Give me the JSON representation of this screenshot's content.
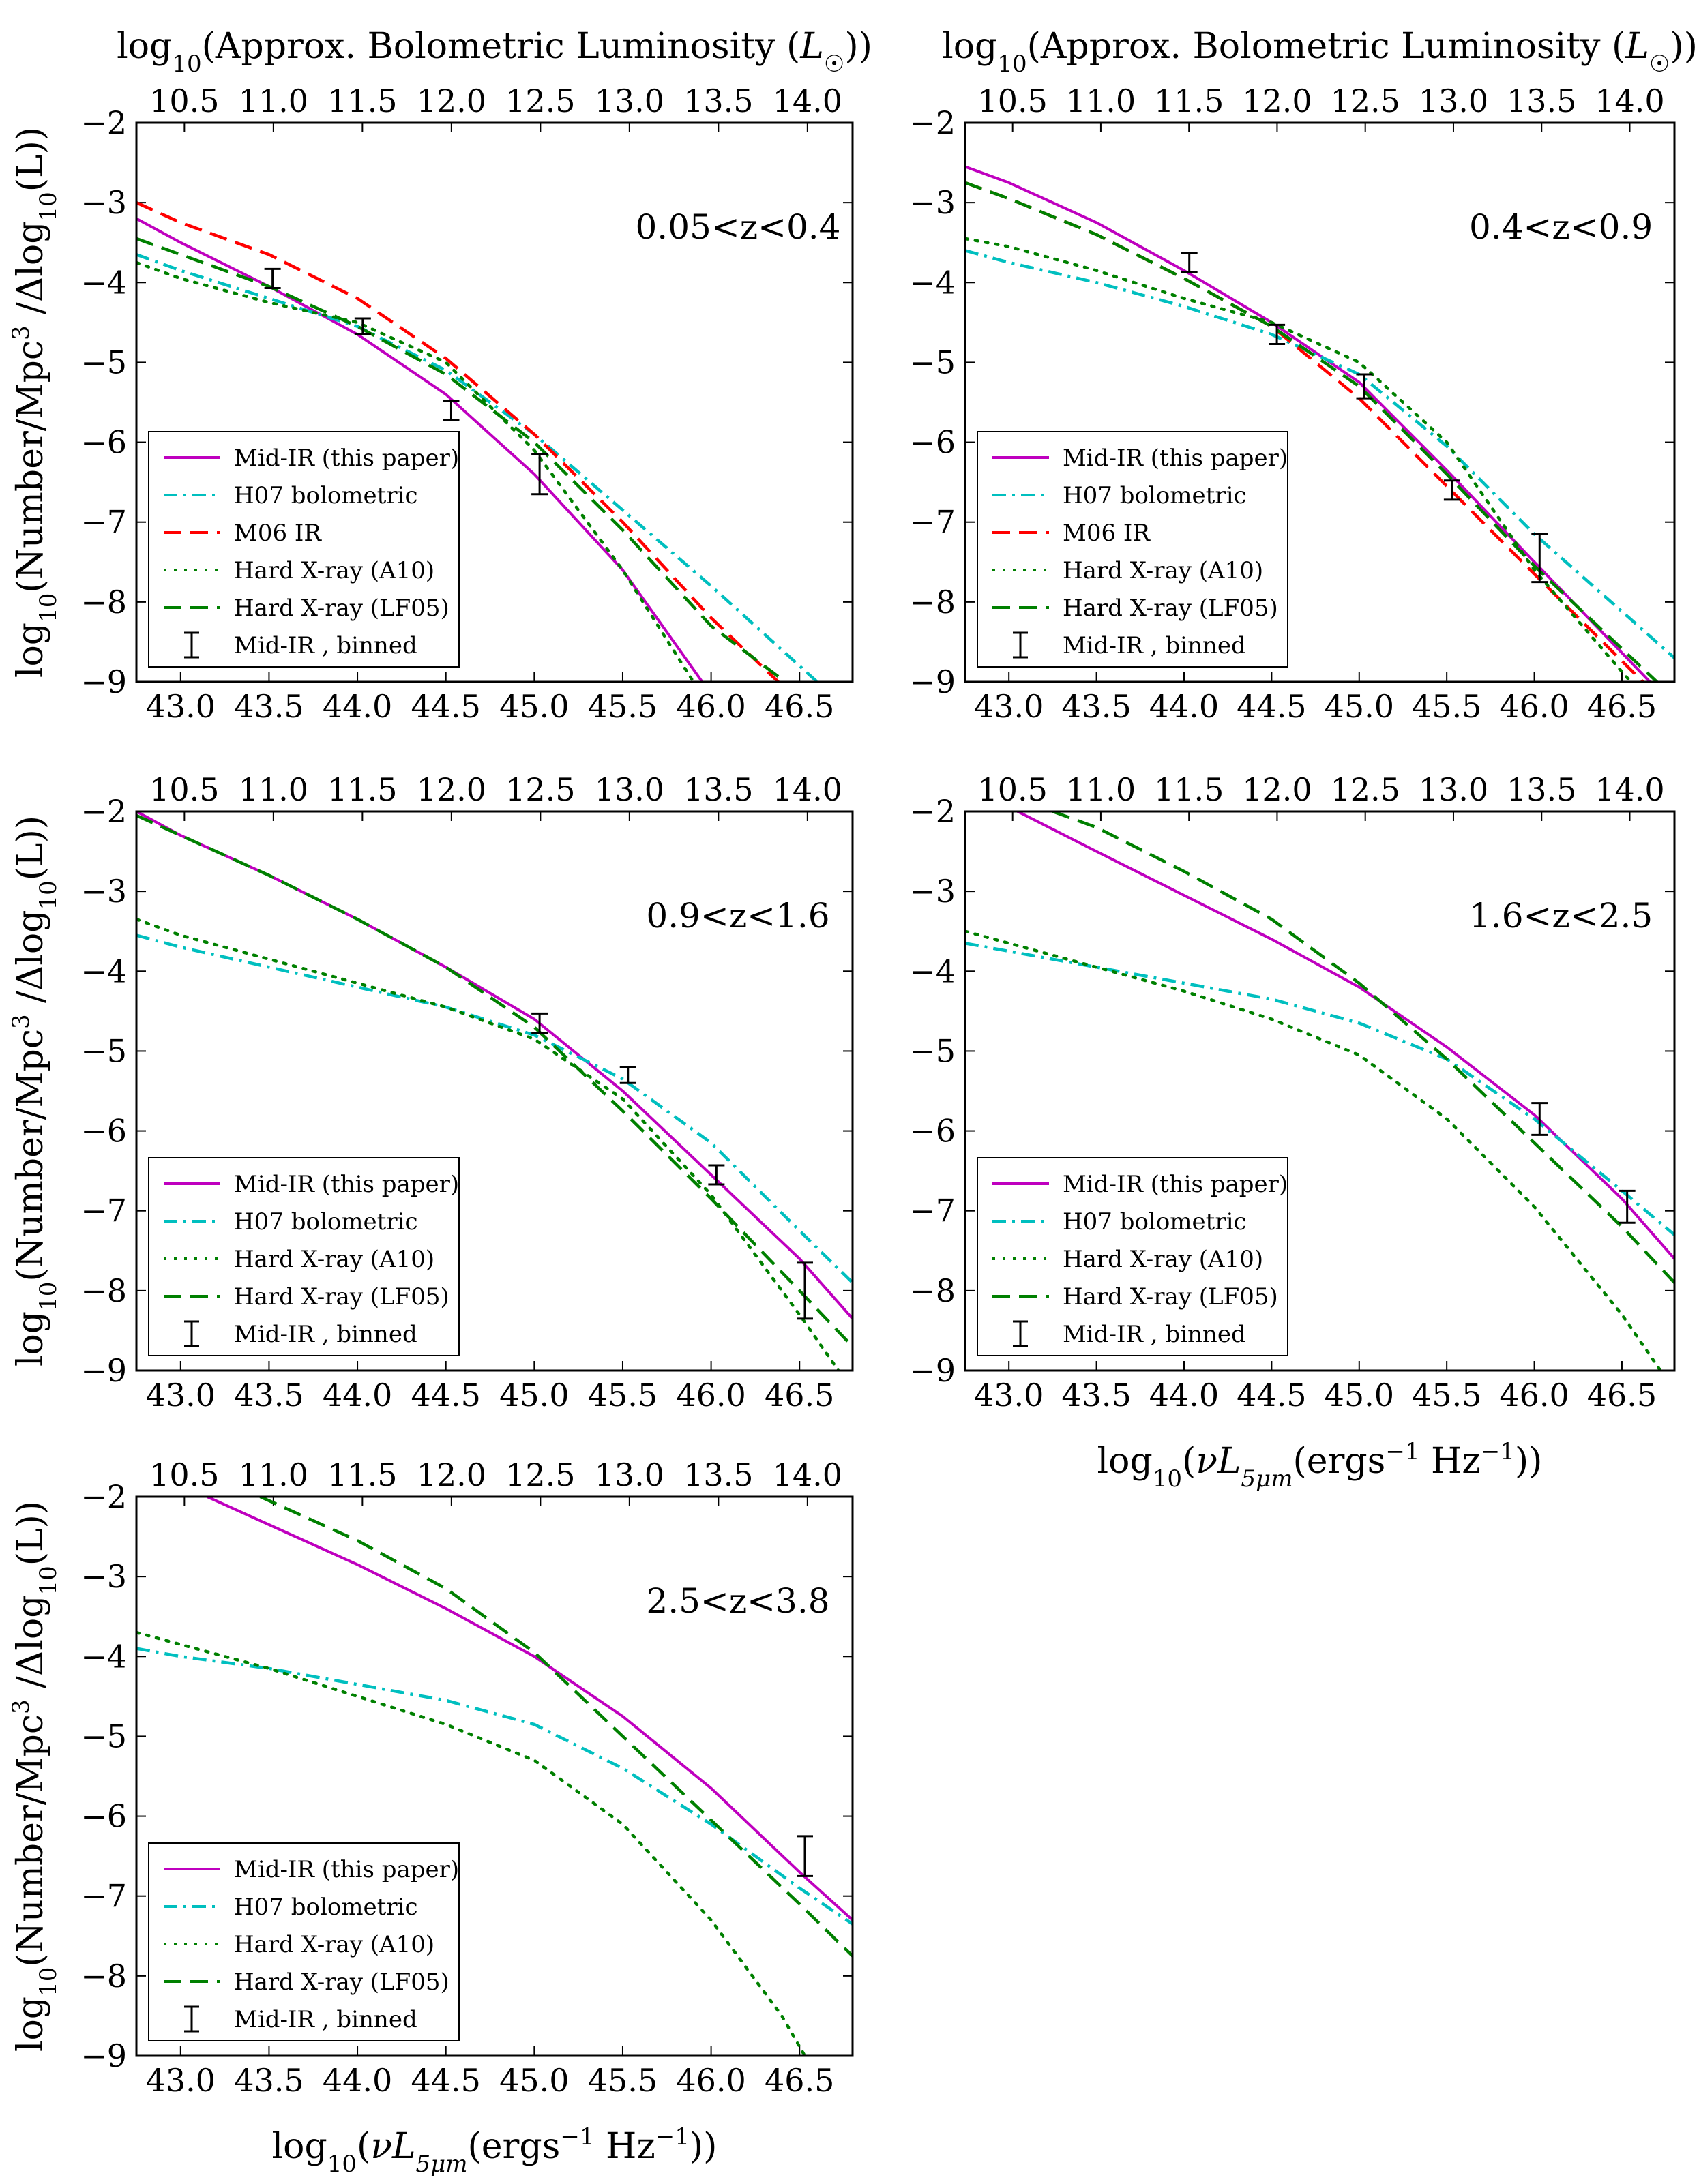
{
  "figure": {
    "top_axis_label": "log10(Approx. Bolometric Luminosity (L⊙))",
    "bottom_axis_label": "log10(νL5μm(ergs⁻¹ Hz⁻¹))",
    "y_axis_label": "log10(Number/Mpc³ /Δlog10(L))"
  },
  "chart_data": [
    {
      "type": "line",
      "title": "0.05<z<0.4",
      "xlabel": "log10(νL5μm(ergs⁻¹ Hz⁻¹))",
      "ylabel": "log10(Number/Mpc³ /Δlog10(L))",
      "top_xlabel": "log10(Approx. Bolometric Luminosity (L⊙))",
      "xlim": [
        42.75,
        46.8
      ],
      "ylim": [
        -9,
        -2
      ],
      "xticks": [
        "43.0",
        "43.5",
        "44.0",
        "44.5",
        "45.0",
        "45.5",
        "46.0",
        "46.5"
      ],
      "yticks": [
        "−2",
        "−3",
        "−4",
        "−5",
        "−6",
        "−7",
        "−8",
        "−9"
      ],
      "top_ticks": [
        "10.5",
        "11.0",
        "11.5",
        "12.0",
        "12.5",
        "13.0",
        "13.5",
        "14.0"
      ],
      "legend_position": "lower-left",
      "series": [
        {
          "name": "Mid-IR (this paper)",
          "color": "#bf00bf",
          "style": "solid",
          "x": [
            42.75,
            43.0,
            43.5,
            44.0,
            44.5,
            45.0,
            45.5,
            45.95
          ],
          "y": [
            -3.2,
            -3.5,
            -4.05,
            -4.65,
            -5.4,
            -6.4,
            -7.6,
            -9.0
          ]
        },
        {
          "name": "H07 bolometric",
          "color": "#00bfbf",
          "style": "dashdot",
          "x": [
            42.75,
            43.0,
            43.5,
            44.0,
            44.5,
            45.0,
            45.5,
            46.0,
            46.6
          ],
          "y": [
            -3.65,
            -3.85,
            -4.2,
            -4.55,
            -5.1,
            -5.9,
            -6.85,
            -7.8,
            -9.0
          ]
        },
        {
          "name": "M06 IR",
          "color": "#ff0000",
          "style": "dashed",
          "x": [
            42.75,
            43.0,
            43.5,
            44.0,
            44.5,
            45.0,
            45.5,
            46.0,
            46.38
          ],
          "y": [
            -3.0,
            -3.25,
            -3.65,
            -4.2,
            -4.95,
            -5.9,
            -7.0,
            -8.2,
            -9.0
          ]
        },
        {
          "name": "Hard X-ray (A10)",
          "color": "#008000",
          "style": "dotted",
          "x": [
            42.75,
            43.0,
            43.5,
            44.0,
            44.5,
            45.0,
            45.5,
            45.9
          ],
          "y": [
            -3.75,
            -3.95,
            -4.25,
            -4.5,
            -5.0,
            -6.1,
            -7.6,
            -9.0
          ]
        },
        {
          "name": "Hard X-ray (LF05)",
          "color": "#008000",
          "style": "dashed",
          "x": [
            42.75,
            43.0,
            43.5,
            44.0,
            44.5,
            45.0,
            45.5,
            46.0,
            46.42
          ],
          "y": [
            -3.45,
            -3.65,
            -4.05,
            -4.55,
            -5.15,
            -6.0,
            -7.1,
            -8.3,
            -9.0
          ]
        }
      ],
      "binned": {
        "name": "Mid-IR , binned",
        "x": [
          43.52,
          44.03,
          44.53,
          45.03
        ],
        "y": [
          -3.95,
          -4.55,
          -5.6,
          -6.4
        ],
        "err": [
          0.12,
          0.1,
          0.12,
          0.25
        ]
      }
    },
    {
      "type": "line",
      "title": "0.4<z<0.9",
      "xlabel": "log10(νL5μm(ergs⁻¹ Hz⁻¹))",
      "ylabel": "log10(Number/Mpc³ /Δlog10(L))",
      "top_xlabel": "log10(Approx. Bolometric Luminosity (L⊙))",
      "xlim": [
        42.75,
        46.8
      ],
      "ylim": [
        -9,
        -2
      ],
      "xticks": [
        "43.0",
        "43.5",
        "44.0",
        "44.5",
        "45.0",
        "45.5",
        "46.0",
        "46.5"
      ],
      "yticks": [
        "−2",
        "−3",
        "−4",
        "−5",
        "−6",
        "−7",
        "−8",
        "−9"
      ],
      "top_ticks": [
        "10.5",
        "11.0",
        "11.5",
        "12.0",
        "12.5",
        "13.0",
        "13.5",
        "14.0"
      ],
      "legend_position": "lower-left",
      "series": [
        {
          "name": "Mid-IR (this paper)",
          "color": "#bf00bf",
          "style": "solid",
          "x": [
            42.75,
            43.0,
            43.5,
            44.0,
            44.5,
            45.0,
            45.5,
            46.0,
            46.66
          ],
          "y": [
            -2.55,
            -2.75,
            -3.25,
            -3.85,
            -4.5,
            -5.25,
            -6.35,
            -7.5,
            -9.0
          ]
        },
        {
          "name": "H07 bolometric",
          "color": "#00bfbf",
          "style": "dashdot",
          "x": [
            42.75,
            43.0,
            43.5,
            44.0,
            44.5,
            45.0,
            45.5,
            46.0,
            46.8
          ],
          "y": [
            -3.6,
            -3.75,
            -4.0,
            -4.3,
            -4.65,
            -5.15,
            -6.05,
            -7.15,
            -8.7
          ]
        },
        {
          "name": "M06 IR",
          "color": "#ff0000",
          "style": "dashed",
          "x": [
            42.75,
            43.0,
            43.5,
            44.0,
            44.5,
            45.0,
            45.5,
            46.0,
            46.62
          ],
          "y": [
            -2.75,
            -2.95,
            -3.4,
            -3.95,
            -4.55,
            -5.45,
            -6.55,
            -7.65,
            -9.0
          ]
        },
        {
          "name": "Hard X-ray (A10)",
          "color": "#008000",
          "style": "dotted",
          "x": [
            42.75,
            43.0,
            43.5,
            44.0,
            44.5,
            45.0,
            45.5,
            46.0,
            46.55
          ],
          "y": [
            -3.45,
            -3.55,
            -3.85,
            -4.2,
            -4.5,
            -5.0,
            -6.0,
            -7.6,
            -9.0
          ]
        },
        {
          "name": "Hard X-ray (LF05)",
          "color": "#008000",
          "style": "dashed",
          "x": [
            42.75,
            43.0,
            43.5,
            44.0,
            44.5,
            45.0,
            45.5,
            46.0,
            46.7
          ],
          "y": [
            -2.75,
            -2.95,
            -3.4,
            -3.95,
            -4.55,
            -5.3,
            -6.4,
            -7.55,
            -9.0
          ]
        }
      ],
      "binned": {
        "name": "Mid-IR , binned",
        "x": [
          44.03,
          44.53,
          45.03,
          45.53,
          46.03
        ],
        "y": [
          -3.75,
          -4.65,
          -5.3,
          -6.6,
          -7.45
        ],
        "err": [
          0.12,
          0.12,
          0.15,
          0.12,
          0.3
        ]
      }
    },
    {
      "type": "line",
      "title": "0.9<z<1.6",
      "xlabel": "log10(νL5μm(ergs⁻¹ Hz⁻¹))",
      "ylabel": "log10(Number/Mpc³ /Δlog10(L))",
      "top_xlabel": "log10(Approx. Bolometric Luminosity (L⊙))",
      "xlim": [
        42.75,
        46.8
      ],
      "ylim": [
        -9,
        -2
      ],
      "xticks": [
        "43.0",
        "43.5",
        "44.0",
        "44.5",
        "45.0",
        "45.5",
        "46.0",
        "46.5"
      ],
      "yticks": [
        "−2",
        "−3",
        "−4",
        "−5",
        "−6",
        "−7",
        "−8",
        "−9"
      ],
      "top_ticks": [
        "10.5",
        "11.0",
        "11.5",
        "12.0",
        "12.5",
        "13.0",
        "13.5",
        "14.0"
      ],
      "legend_position": "lower-left",
      "series": [
        {
          "name": "Mid-IR (this paper)",
          "color": "#bf00bf",
          "style": "solid",
          "x": [
            42.75,
            43.0,
            43.5,
            44.0,
            44.5,
            45.0,
            45.5,
            46.0,
            46.5,
            46.8
          ],
          "y": [
            -2.0,
            -2.3,
            -2.8,
            -3.35,
            -3.95,
            -4.6,
            -5.5,
            -6.55,
            -7.6,
            -8.35
          ]
        },
        {
          "name": "H07 bolometric",
          "color": "#00bfbf",
          "style": "dashdot",
          "x": [
            42.75,
            43.0,
            43.5,
            44.0,
            44.5,
            45.0,
            45.5,
            46.0,
            46.5,
            46.8
          ],
          "y": [
            -3.55,
            -3.7,
            -3.95,
            -4.2,
            -4.45,
            -4.8,
            -5.35,
            -6.15,
            -7.25,
            -7.9
          ]
        },
        {
          "name": "Hard X-ray (A10)",
          "color": "#008000",
          "style": "dotted",
          "x": [
            42.75,
            43.0,
            43.5,
            44.0,
            44.5,
            45.0,
            45.5,
            46.0,
            46.5,
            46.72
          ],
          "y": [
            -3.35,
            -3.55,
            -3.85,
            -4.15,
            -4.45,
            -4.85,
            -5.6,
            -6.8,
            -8.3,
            -9.0
          ]
        },
        {
          "name": "Hard X-ray (LF05)",
          "color": "#008000",
          "style": "dashed",
          "x": [
            42.75,
            43.0,
            43.5,
            44.0,
            44.5,
            45.0,
            45.5,
            46.0,
            46.5,
            46.8
          ],
          "y": [
            -2.05,
            -2.3,
            -2.8,
            -3.35,
            -3.95,
            -4.7,
            -5.75,
            -6.85,
            -8.0,
            -8.7
          ]
        }
      ],
      "binned": {
        "name": "Mid-IR , binned",
        "x": [
          45.03,
          45.53,
          46.03,
          46.53
        ],
        "y": [
          -4.65,
          -5.3,
          -6.55,
          -8.0
        ],
        "err": [
          0.12,
          0.1,
          0.12,
          0.35
        ]
      }
    },
    {
      "type": "line",
      "title": "1.6<z<2.5",
      "xlabel": "log10(νL5μm(ergs⁻¹ Hz⁻¹))",
      "ylabel": "log10(Number/Mpc³ /Δlog10(L))",
      "top_xlabel": "log10(Approx. Bolometric Luminosity (L⊙))",
      "xlim": [
        42.75,
        46.8
      ],
      "ylim": [
        -9,
        -2
      ],
      "xticks": [
        "43.0",
        "43.5",
        "44.0",
        "44.5",
        "45.0",
        "45.5",
        "46.0",
        "46.5"
      ],
      "yticks": [
        "−2",
        "−3",
        "−4",
        "−5",
        "−6",
        "−7",
        "−8",
        "−9"
      ],
      "top_ticks": [
        "10.5",
        "11.0",
        "11.5",
        "12.0",
        "12.5",
        "13.0",
        "13.5",
        "14.0"
      ],
      "legend_position": "lower-left",
      "series": [
        {
          "name": "Mid-IR (this paper)",
          "color": "#bf00bf",
          "style": "solid",
          "x": [
            43.05,
            43.5,
            44.0,
            44.5,
            45.0,
            45.5,
            46.0,
            46.5,
            46.8
          ],
          "y": [
            -2.0,
            -2.5,
            -3.05,
            -3.6,
            -4.2,
            -4.95,
            -5.8,
            -6.85,
            -7.6
          ]
        },
        {
          "name": "H07 bolometric",
          "color": "#00bfbf",
          "style": "dashdot",
          "x": [
            42.75,
            43.0,
            43.5,
            44.0,
            44.5,
            45.0,
            45.5,
            46.0,
            46.5,
            46.8
          ],
          "y": [
            -3.65,
            -3.75,
            -3.95,
            -4.15,
            -4.35,
            -4.65,
            -5.1,
            -5.85,
            -6.75,
            -7.3
          ]
        },
        {
          "name": "Hard X-ray (A10)",
          "color": "#008000",
          "style": "dotted",
          "x": [
            42.75,
            43.0,
            43.5,
            44.0,
            44.5,
            45.0,
            45.5,
            46.0,
            46.5,
            46.72
          ],
          "y": [
            -3.5,
            -3.65,
            -3.95,
            -4.25,
            -4.6,
            -5.05,
            -5.85,
            -6.95,
            -8.3,
            -9.0
          ]
        },
        {
          "name": "Hard X-ray (LF05)",
          "color": "#008000",
          "style": "dashed",
          "x": [
            43.25,
            43.5,
            44.0,
            44.5,
            45.0,
            45.5,
            46.0,
            46.5,
            46.8
          ],
          "y": [
            -2.0,
            -2.2,
            -2.75,
            -3.35,
            -4.15,
            -5.1,
            -6.15,
            -7.2,
            -7.9
          ]
        }
      ],
      "binned": {
        "name": "Mid-IR , binned",
        "x": [
          46.03,
          46.53
        ],
        "y": [
          -5.85,
          -6.95
        ],
        "err": [
          0.2,
          0.2
        ]
      }
    },
    {
      "type": "line",
      "title": "2.5<z<3.8",
      "xlabel": "log10(νL5μm(ergs⁻¹ Hz⁻¹))",
      "ylabel": "log10(Number/Mpc³ /Δlog10(L))",
      "top_xlabel": "log10(Approx. Bolometric Luminosity (L⊙))",
      "xlim": [
        42.75,
        46.8
      ],
      "ylim": [
        -9,
        -2
      ],
      "xticks": [
        "43.0",
        "43.5",
        "44.0",
        "44.5",
        "45.0",
        "45.5",
        "46.0",
        "46.5"
      ],
      "yticks": [
        "−2",
        "−3",
        "−4",
        "−5",
        "−6",
        "−7",
        "−8",
        "−9"
      ],
      "top_ticks": [
        "10.5",
        "11.0",
        "11.5",
        "12.0",
        "12.5",
        "13.0",
        "13.5",
        "14.0"
      ],
      "legend_position": "lower-left",
      "series": [
        {
          "name": "Mid-IR (this paper)",
          "color": "#bf00bf",
          "style": "solid",
          "x": [
            43.15,
            43.5,
            44.0,
            44.5,
            45.0,
            45.5,
            46.0,
            46.5,
            46.8
          ],
          "y": [
            -2.0,
            -2.35,
            -2.85,
            -3.4,
            -4.0,
            -4.75,
            -5.65,
            -6.7,
            -7.3
          ]
        },
        {
          "name": "H07 bolometric",
          "color": "#00bfbf",
          "style": "dashdot",
          "x": [
            42.75,
            43.0,
            43.5,
            44.0,
            44.5,
            45.0,
            45.5,
            46.0,
            46.5,
            46.8
          ],
          "y": [
            -3.9,
            -4.0,
            -4.15,
            -4.35,
            -4.55,
            -4.85,
            -5.4,
            -6.1,
            -6.9,
            -7.35
          ]
        },
        {
          "name": "Hard X-ray (A10)",
          "color": "#008000",
          "style": "dotted",
          "x": [
            42.75,
            43.0,
            43.5,
            44.0,
            44.5,
            45.0,
            45.5,
            46.0,
            46.4,
            46.53
          ],
          "y": [
            -3.7,
            -3.85,
            -4.15,
            -4.5,
            -4.85,
            -5.3,
            -6.1,
            -7.3,
            -8.5,
            -9.0
          ]
        },
        {
          "name": "Hard X-ray (LF05)",
          "color": "#008000",
          "style": "dashed",
          "x": [
            43.45,
            44.0,
            44.5,
            45.0,
            45.5,
            46.0,
            46.5,
            46.8
          ],
          "y": [
            -2.0,
            -2.55,
            -3.15,
            -3.95,
            -5.0,
            -6.05,
            -7.1,
            -7.75
          ]
        }
      ],
      "binned": {
        "name": "Mid-IR , binned",
        "x": [
          46.53
        ],
        "y": [
          -6.5
        ],
        "err": [
          0.25
        ]
      }
    }
  ]
}
